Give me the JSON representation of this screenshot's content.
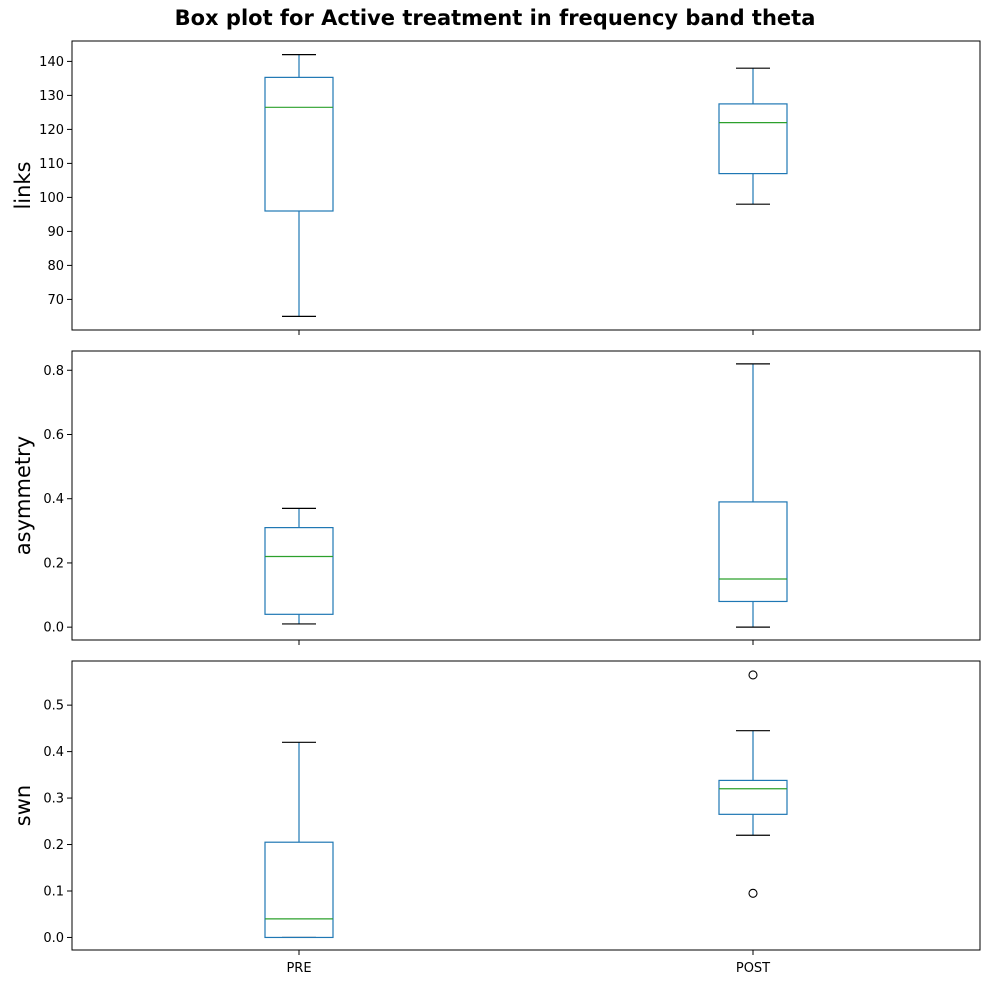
{
  "title": "Box plot for Active treatment in frequency band theta",
  "chart_data": [
    {
      "type": "box",
      "ylabel": "links",
      "categories": [
        "PRE",
        "POST"
      ],
      "ylim": [
        61,
        146
      ],
      "yticks": [
        70,
        80,
        90,
        100,
        110,
        120,
        130,
        140
      ],
      "show_xticklabels": false,
      "grid": false,
      "boxes": [
        {
          "category": "PRE",
          "whisker_low": 65,
          "q1": 96,
          "median": 126.5,
          "q3": 135.3,
          "whisker_high": 142,
          "outliers": []
        },
        {
          "category": "POST",
          "whisker_low": 98,
          "q1": 107,
          "median": 122,
          "q3": 127.5,
          "whisker_high": 138,
          "outliers": []
        }
      ]
    },
    {
      "type": "box",
      "ylabel": "asymmetry",
      "categories": [
        "PRE",
        "POST"
      ],
      "ylim": [
        -0.04,
        0.86
      ],
      "yticks": [
        0.0,
        0.2,
        0.4,
        0.6,
        0.8
      ],
      "show_xticklabels": false,
      "grid": false,
      "boxes": [
        {
          "category": "PRE",
          "whisker_low": 0.01,
          "q1": 0.04,
          "median": 0.22,
          "q3": 0.31,
          "whisker_high": 0.37,
          "outliers": []
        },
        {
          "category": "POST",
          "whisker_low": 0.0,
          "q1": 0.08,
          "median": 0.15,
          "q3": 0.39,
          "whisker_high": 0.82,
          "outliers": []
        }
      ]
    },
    {
      "type": "box",
      "ylabel": "swn",
      "categories": [
        "PRE",
        "POST"
      ],
      "ylim": [
        -0.027,
        0.595
      ],
      "yticks": [
        0.0,
        0.1,
        0.2,
        0.3,
        0.4,
        0.5
      ],
      "show_xticklabels": true,
      "grid": false,
      "boxes": [
        {
          "category": "PRE",
          "whisker_low": 0.0,
          "q1": 0.0,
          "median": 0.04,
          "q3": 0.205,
          "whisker_high": 0.42,
          "outliers": []
        },
        {
          "category": "POST",
          "whisker_low": 0.22,
          "q1": 0.265,
          "median": 0.32,
          "q3": 0.338,
          "whisker_high": 0.445,
          "outliers": [
            0.565,
            0.095
          ]
        }
      ]
    }
  ],
  "colors": {
    "box": "#1f77b4",
    "median": "#2ca02c",
    "whisker_cap": "#000000",
    "axes": "#000000"
  }
}
